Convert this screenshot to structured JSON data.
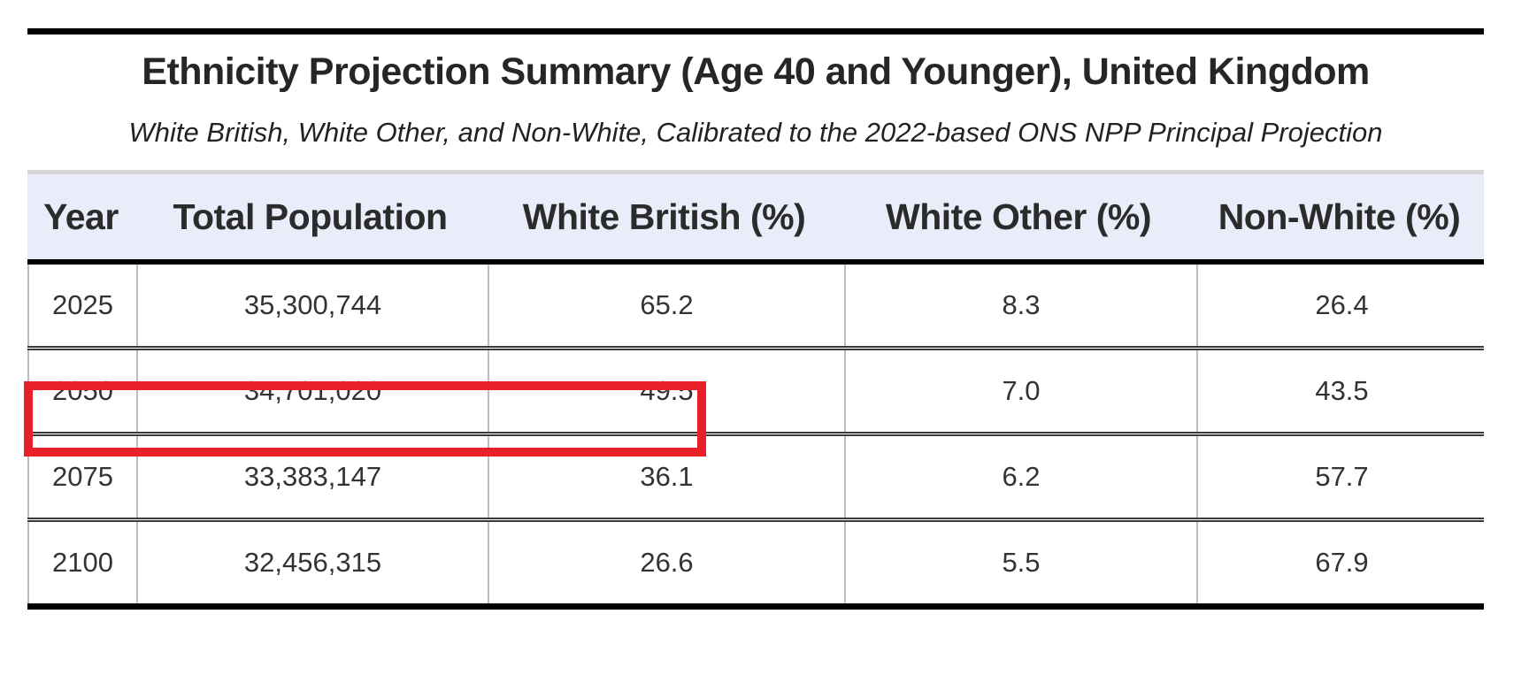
{
  "page": {
    "title": "Ethnicity Projection Summary (Age 40 and Younger), United Kingdom",
    "subtitle": "White British, White Other, and Non-White, Calibrated to the 2022-based ONS NPP Principal Projection"
  },
  "table": {
    "headers": [
      "Year",
      "Total Population",
      "White British (%)",
      "White Other (%)",
      "Non-White (%)"
    ],
    "rows": [
      [
        "2025",
        "35,300,744",
        "65.2",
        "8.3",
        "26.4"
      ],
      [
        "2050",
        "34,701,020",
        "49.5",
        "7.0",
        "43.5"
      ],
      [
        "2075",
        "33,383,147",
        "36.1",
        "6.2",
        "57.7"
      ],
      [
        "2100",
        "32,456,315",
        "26.6",
        "5.5",
        "67.9"
      ]
    ],
    "highlight": {
      "row": "2050",
      "columns": [
        "Year",
        "Total Population",
        "White British (%)"
      ],
      "color": "#e8202a"
    }
  },
  "colors": {
    "header_background": "#e9edf9",
    "top_strip": "#d7d7d7",
    "thick_rules": "#000000",
    "row_separator": "#3a3a3a",
    "column_divider": "#bdbdbd",
    "highlight_red": "#e8202a"
  },
  "chart_data": {
    "type": "table",
    "title": "Ethnicity Projection Summary (Age 40 and Younger), United Kingdom",
    "subtitle": "White British, White Other, and Non-White, Calibrated to the 2022-based ONS NPP Principal Projection",
    "columns": [
      "Year",
      "Total Population",
      "White British (%)",
      "White Other (%)",
      "Non-White (%)"
    ],
    "rows": [
      {
        "year": 2025,
        "total_population": 35300744,
        "white_british_pct": 65.2,
        "white_other_pct": 8.3,
        "non_white_pct": 26.4
      },
      {
        "year": 2050,
        "total_population": 34701020,
        "white_british_pct": 49.5,
        "white_other_pct": 7.0,
        "non_white_pct": 43.5
      },
      {
        "year": 2075,
        "total_population": 33383147,
        "white_british_pct": 36.1,
        "white_other_pct": 6.2,
        "non_white_pct": 57.7
      },
      {
        "year": 2100,
        "total_population": 32456315,
        "white_british_pct": 26.6,
        "white_other_pct": 5.5,
        "non_white_pct": 67.9
      }
    ],
    "annotations": [
      {
        "kind": "highlight-rectangle",
        "color": "#e8202a",
        "covers": "2050 row: Year, Total Population, White British (%)"
      }
    ]
  }
}
